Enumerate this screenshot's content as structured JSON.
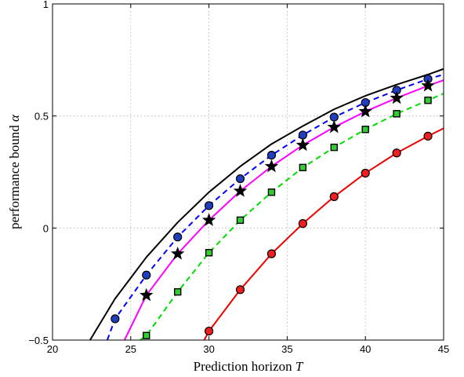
{
  "chart_data": {
    "type": "line",
    "xlabel": "Prediction horizon",
    "xlabel_var": "T",
    "ylabel": "performance bound",
    "ylabel_var": "α",
    "xlim": [
      20,
      45
    ],
    "ylim": [
      -0.5,
      1
    ],
    "xticks": [
      "20",
      "25",
      "30",
      "35",
      "40",
      "45"
    ],
    "yticks": [
      "−0.5",
      "0",
      "0.5",
      "1"
    ],
    "grid": true,
    "series": [
      {
        "color": "#000000",
        "dash": "solid",
        "marker": "none",
        "x": [
          22.4,
          24,
          26,
          28,
          30,
          32,
          34,
          36,
          38,
          40,
          42,
          44,
          45
        ],
        "y": [
          -0.5,
          -0.315,
          -0.13,
          0.025,
          0.16,
          0.275,
          0.375,
          0.455,
          0.53,
          0.59,
          0.64,
          0.685,
          0.71
        ]
      },
      {
        "color": "#0000ff",
        "dash": "dashed",
        "marker": "circle",
        "marker_fill": "#1f3fbf",
        "x": [
          23.5,
          24,
          26,
          28,
          30,
          32,
          34,
          36,
          38,
          40,
          42,
          44,
          45
        ],
        "y": [
          -0.5,
          -0.405,
          -0.21,
          -0.04,
          0.1,
          0.22,
          0.325,
          0.415,
          0.495,
          0.56,
          0.615,
          0.665,
          0.685
        ]
      },
      {
        "color": "#ff00ff",
        "dash": "solid",
        "marker": "star",
        "marker_fill": "#000000",
        "x": [
          24.6,
          26,
          28,
          30,
          32,
          34,
          36,
          38,
          40,
          42,
          44,
          45
        ],
        "y": [
          -0.5,
          -0.3,
          -0.115,
          0.035,
          0.165,
          0.275,
          0.37,
          0.45,
          0.52,
          0.58,
          0.635,
          0.66
        ]
      },
      {
        "color": "#00dd00",
        "dash": "dashed",
        "marker": "square",
        "marker_fill": "#33cc33",
        "x": [
          25.6,
          26,
          28,
          30,
          32,
          34,
          36,
          38,
          40,
          42,
          44,
          45
        ],
        "y": [
          -0.5,
          -0.48,
          -0.285,
          -0.11,
          0.035,
          0.16,
          0.27,
          0.36,
          0.44,
          0.51,
          0.57,
          0.6
        ]
      },
      {
        "color": "#ee0000",
        "dash": "solid",
        "marker": "circle",
        "marker_fill": "#ee2020",
        "x": [
          29.7,
          30,
          32,
          34,
          36,
          38,
          40,
          42,
          44,
          45
        ],
        "y": [
          -0.5,
          -0.46,
          -0.275,
          -0.115,
          0.02,
          0.14,
          0.245,
          0.335,
          0.41,
          0.445
        ]
      }
    ],
    "marker_x": [
      24,
      26,
      28,
      30,
      32,
      34,
      36,
      38,
      40,
      42,
      44
    ]
  }
}
